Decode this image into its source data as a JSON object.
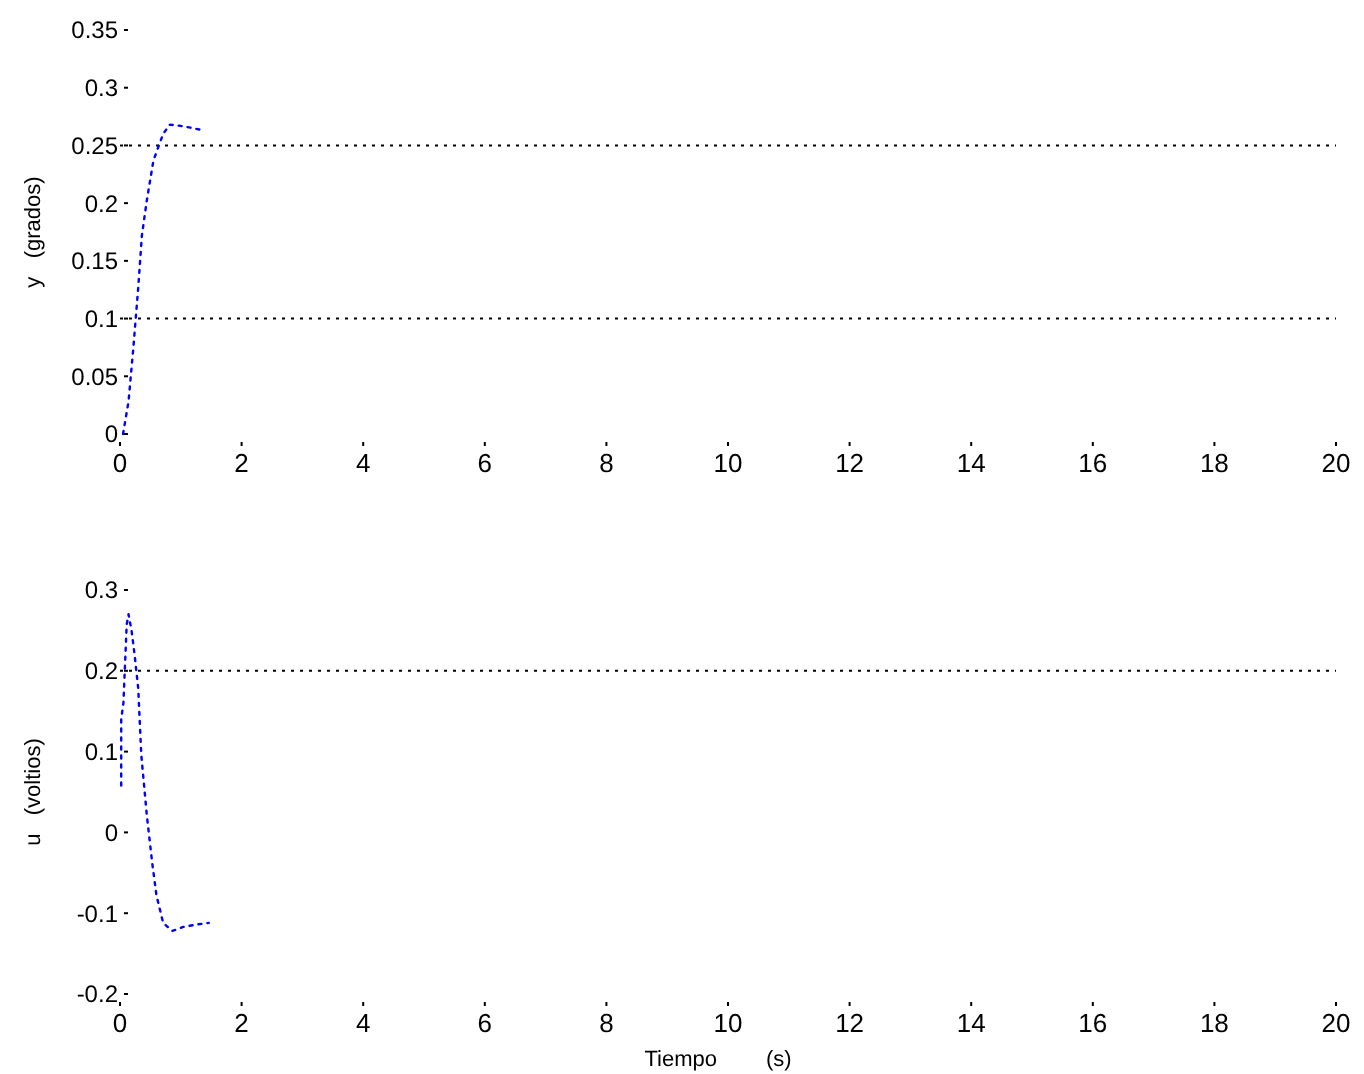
{
  "chart_data": [
    {
      "type": "line",
      "ylabel": "y   (grados)",
      "xlim": [
        0,
        20
      ],
      "xticks": [
        0,
        2,
        4,
        6,
        8,
        10,
        12,
        14,
        16,
        18,
        20
      ],
      "ylim": [
        0,
        0.35
      ],
      "yticks": [
        0,
        0.05,
        0.1,
        0.15,
        0.2,
        0.25,
        0.3,
        0.35
      ],
      "line_style": "dotted",
      "ref_lines": [
        {
          "axis": "y",
          "value": 0.1,
          "line_style": "dotted",
          "color": "#000000"
        },
        {
          "axis": "y",
          "value": 0.25,
          "line_style": "dotted",
          "color": "#000000"
        }
      ],
      "series": [
        {
          "color": "#0000ff",
          "x": [
            0.05,
            0.14,
            0.22,
            0.3,
            0.36,
            0.44,
            0.55,
            0.71,
            0.82,
            0.99,
            1.2,
            1.37
          ],
          "values": [
            0,
            0.028,
            0.075,
            0.127,
            0.172,
            0.202,
            0.237,
            0.26,
            0.268,
            0.267,
            0.265,
            0.263
          ]
        }
      ]
    },
    {
      "type": "line",
      "xlabel": "Tiempo        (s)",
      "ylabel": "u   (voltios)",
      "xlim": [
        0,
        20
      ],
      "xticks": [
        0,
        2,
        4,
        6,
        8,
        10,
        12,
        14,
        16,
        18,
        20
      ],
      "ylim": [
        -0.2,
        0.3
      ],
      "yticks": [
        -0.2,
        -0.1,
        0,
        0.1,
        0.2,
        0.3
      ],
      "line_style": "dotted",
      "ref_lines": [
        {
          "axis": "y",
          "value": 0.2,
          "line_style": "dotted",
          "color": "#000000"
        }
      ],
      "series": [
        {
          "color": "#0000ff",
          "x": [
            0.02,
            0.02,
            0.056,
            0.11,
            0.14,
            0.19,
            0.24,
            0.3,
            0.35,
            0.44,
            0.53,
            0.6,
            0.71,
            0.86,
            1.04,
            1.26,
            1.46
          ],
          "values": [
            0.058,
            0.14,
            0.16,
            0.257,
            0.27,
            0.25,
            0.22,
            0.178,
            0.096,
            0.022,
            -0.038,
            -0.078,
            -0.112,
            -0.122,
            -0.117,
            -0.114,
            -0.112
          ]
        }
      ]
    }
  ]
}
